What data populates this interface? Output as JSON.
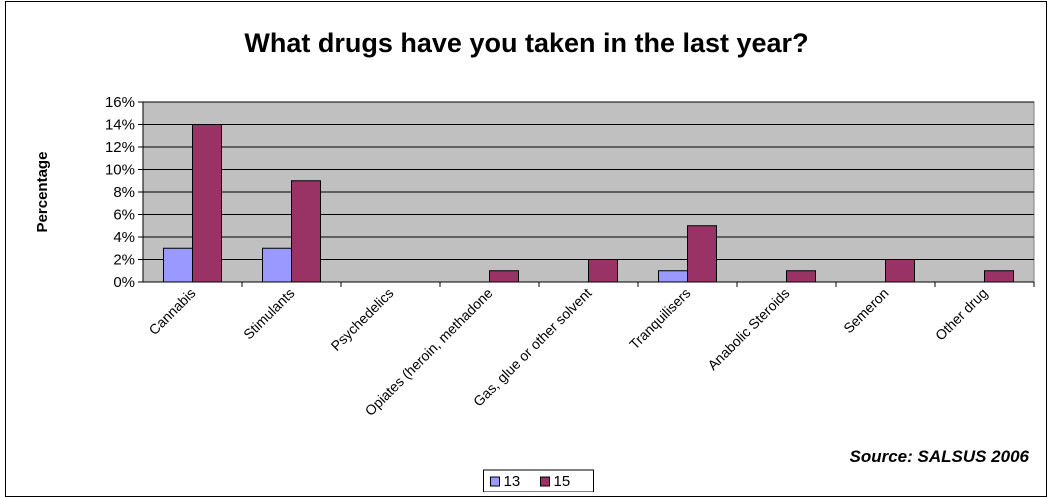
{
  "chart_data": {
    "type": "bar",
    "title": "What drugs have you taken in the last year?",
    "xlabel": "",
    "ylabel": "Percentage",
    "ylim": [
      0,
      16
    ],
    "yticks": [
      "0%",
      "2%",
      "4%",
      "6%",
      "8%",
      "10%",
      "12%",
      "14%",
      "16%"
    ],
    "tick_step": 2,
    "grid": true,
    "legend_position": "bottom",
    "categories": [
      "Cannabis",
      "Stimulants",
      "Psychedelics",
      "Opiates (heroin, methadone",
      "Gas, glue or other solvent",
      "Tranquilisers",
      "Anabolic Steroids",
      "Semeron",
      "Other drug"
    ],
    "series": [
      {
        "name": "13",
        "color": "#9999ff",
        "values": [
          3,
          3,
          0,
          0,
          0,
          1,
          0,
          0,
          0
        ]
      },
      {
        "name": "15",
        "color": "#993366",
        "values": [
          14,
          9,
          0,
          1,
          2,
          5,
          1,
          2,
          1
        ]
      }
    ],
    "plot_background": "#c0c0c0"
  },
  "source_note": "Source: SALSUS 2006"
}
